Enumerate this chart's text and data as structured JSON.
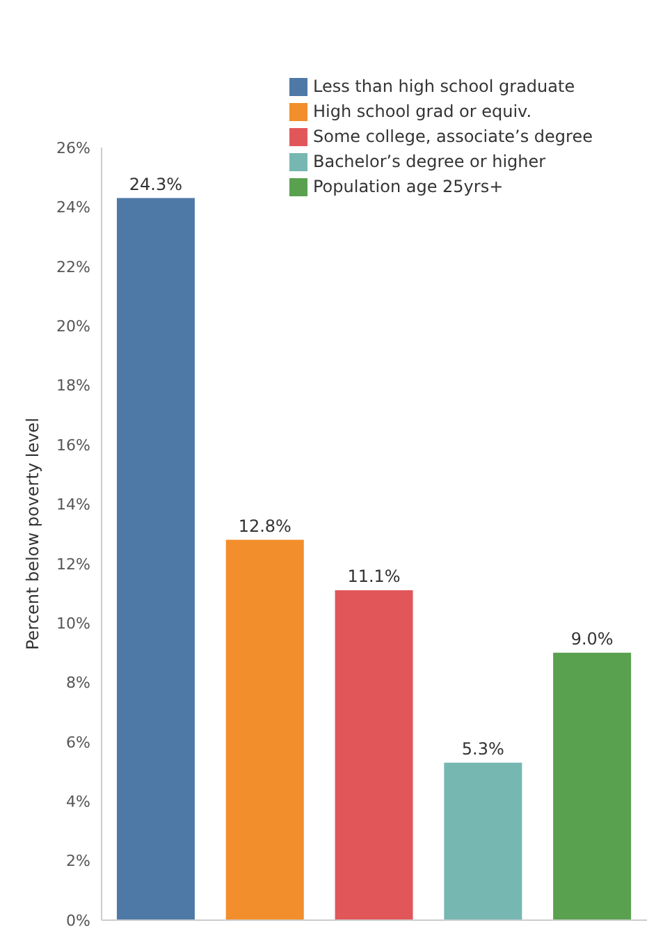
{
  "chart_data": {
    "type": "bar",
    "ylabel": "Percent below poverty level",
    "categories": [
      null,
      null,
      null,
      null,
      null
    ],
    "stacked": true,
    "series": [
      {
        "name": "Less than high school graduate",
        "color": "#4e79a7",
        "values": [
          24.3,
          null,
          null,
          null,
          null
        ],
        "value_labels": [
          "24.3%",
          null,
          null,
          null,
          null
        ]
      },
      {
        "name": "High school grad or equiv.",
        "color": "#f28e2b",
        "values": [
          null,
          12.8,
          null,
          null,
          null
        ],
        "value_labels": [
          null,
          "12.8%",
          null,
          null,
          null
        ]
      },
      {
        "name": "Some college, associate’s degree",
        "color": "#e15759",
        "values": [
          null,
          null,
          11.1,
          null,
          null
        ],
        "value_labels": [
          null,
          null,
          "11.1%",
          null,
          null
        ]
      },
      {
        "name": "Bachelor’s degree or higher",
        "color": "#76b7b2",
        "values": [
          null,
          null,
          null,
          5.3,
          null
        ],
        "value_labels": [
          null,
          null,
          null,
          "5.3%",
          null
        ]
      },
      {
        "name": "Population age 25yrs+",
        "color": "#59a14f",
        "values": [
          null,
          null,
          null,
          null,
          9.0
        ],
        "value_labels": [
          null,
          null,
          null,
          null,
          "9.0%"
        ]
      }
    ],
    "ylim": [
      0,
      26
    ],
    "yticks": [
      {
        "value": 0,
        "label": "0%"
      },
      {
        "value": 2,
        "label": "2%"
      },
      {
        "value": 4,
        "label": "4%"
      },
      {
        "value": 6,
        "label": "6%"
      },
      {
        "value": 8,
        "label": "8%"
      },
      {
        "value": 10,
        "label": "10%"
      },
      {
        "value": 12,
        "label": "12%"
      },
      {
        "value": 14,
        "label": "14%"
      },
      {
        "value": 16,
        "label": "16%"
      },
      {
        "value": 18,
        "label": "18%"
      },
      {
        "value": 20,
        "label": "20%"
      },
      {
        "value": 22,
        "label": "22%"
      },
      {
        "value": 24,
        "label": "24%"
      },
      {
        "value": 26,
        "label": "26%"
      }
    ],
    "legend": "top right"
  }
}
